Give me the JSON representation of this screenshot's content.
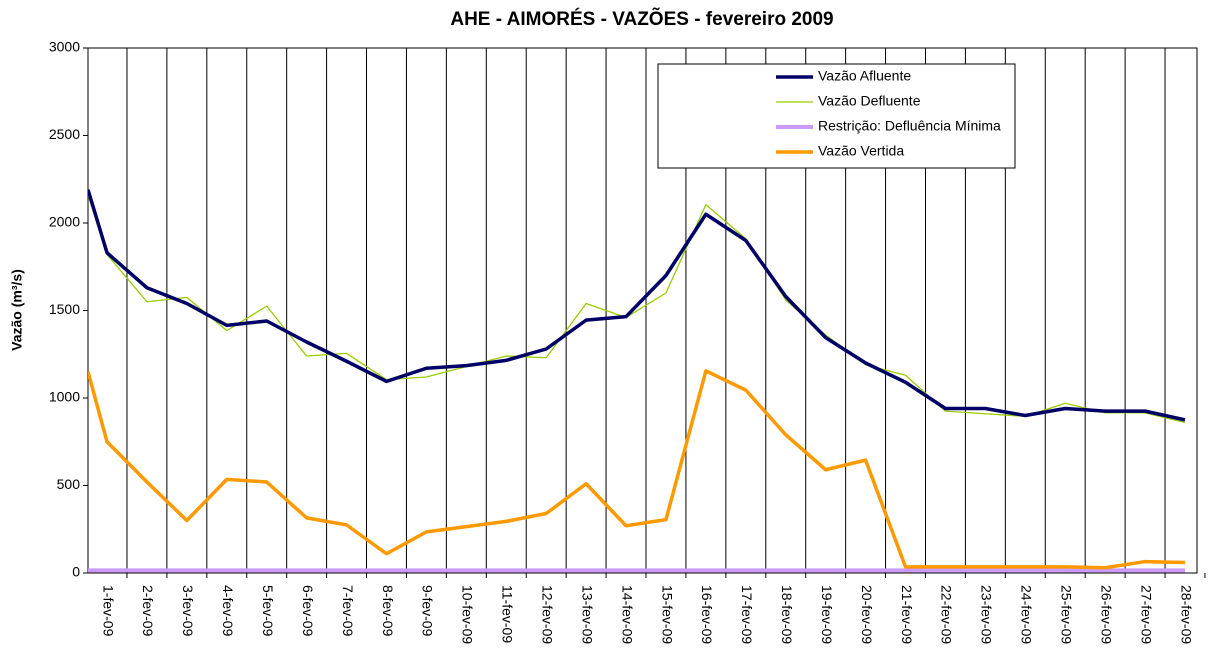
{
  "chart_data": {
    "type": "line",
    "title": "AHE - AIMORÉS - VAZÕES - fevereiro 2009",
    "y_label": "Vazão (m³/s)",
    "categories": [
      null,
      "1-fev-09",
      "2-fev-09",
      "3-fev-09",
      "4-fev-09",
      "5-fev-09",
      "6-fev-09",
      "7-fev-09",
      "8-fev-09",
      "9-fev-09",
      "10-fev-09",
      "11-fev-09",
      "12-fev-09",
      "13-fev-09",
      "14-fev-09",
      "15-fev-09",
      "16-fev-09",
      "17-fev-09",
      "18-fev-09",
      "19-fev-09",
      "20-fev-09",
      "21-fev-09",
      "22-fev-09",
      "23-fev-09",
      "24-fev-09",
      "25-fev-09",
      "26-fev-09",
      "27-fev-09",
      "28-fev-09"
    ],
    "series": [
      {
        "name": "Vazão Afluente",
        "color": "#000066",
        "width": 3.5,
        "values": [
          2190,
          1830,
          1630,
          1540,
          1415,
          1440,
          1320,
          1210,
          1095,
          1170,
          1185,
          1215,
          1280,
          1445,
          1465,
          1700,
          2050,
          1900,
          1580,
          1345,
          1200,
          1090,
          940,
          940,
          900,
          940,
          925,
          925,
          875
        ]
      },
      {
        "name": "Vazão Defluente",
        "color": "#99cc00",
        "width": 1.3,
        "values": [
          2160,
          1820,
          1550,
          1575,
          1385,
          1525,
          1240,
          1255,
          1105,
          1120,
          1180,
          1240,
          1230,
          1540,
          1460,
          1600,
          2105,
          1910,
          1560,
          1360,
          1190,
          1130,
          925,
          910,
          895,
          970,
          915,
          915,
          860
        ]
      },
      {
        "name": "Restrição: Defluência Mínima",
        "color": "#cc99ff",
        "width": 4,
        "values": [
          15,
          15,
          15,
          15,
          15,
          15,
          15,
          15,
          15,
          15,
          15,
          15,
          15,
          15,
          15,
          15,
          15,
          15,
          15,
          15,
          15,
          15,
          15,
          15,
          15,
          15,
          15,
          15,
          15
        ]
      },
      {
        "name": "Vazão Vertida",
        "color": "#ff9900",
        "width": 3.5,
        "values": [
          1150,
          750,
          520,
          300,
          535,
          520,
          315,
          275,
          110,
          235,
          265,
          295,
          340,
          510,
          270,
          305,
          1155,
          1045,
          790,
          590,
          645,
          35,
          35,
          35,
          35,
          35,
          30,
          65,
          60
        ]
      }
    ],
    "ylim": [
      0,
      3000
    ],
    "yticks": [
      0,
      500,
      1000,
      1500,
      2000,
      2500,
      3000
    ],
    "grid": false,
    "legend": "upper right"
  }
}
